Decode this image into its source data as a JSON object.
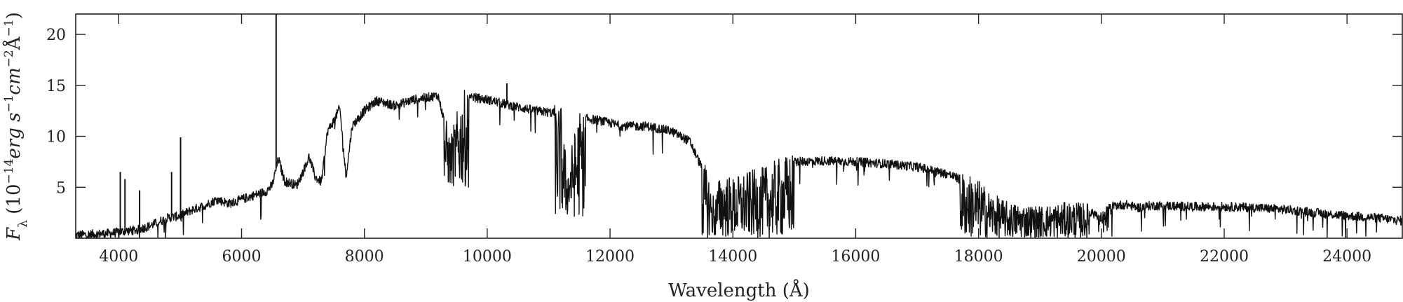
{
  "chart_data": {
    "type": "line",
    "xlabel": "Wavelength (Å)",
    "ylabel": {
      "parts": [
        {
          "t": "F",
          "style": "italic"
        },
        {
          "t": "λ",
          "style": "sub"
        },
        {
          "t": " (10",
          "style": "normal"
        },
        {
          "t": "−14",
          "style": "sup"
        },
        {
          "t": "erg s",
          "style": "italic"
        },
        {
          "t": "−1",
          "style": "sup"
        },
        {
          "t": "cm",
          "style": "italic"
        },
        {
          "t": "−2",
          "style": "sup"
        },
        {
          "t": "Å",
          "style": "normal"
        },
        {
          "t": "−1",
          "style": "sup"
        },
        {
          "t": ")",
          "style": "normal"
        }
      ]
    },
    "xlim": [
      3300,
      24900
    ],
    "ylim": [
      0,
      22
    ],
    "xticks": [
      4000,
      6000,
      8000,
      10000,
      12000,
      14000,
      16000,
      18000,
      20000,
      22000,
      24000
    ],
    "yticks": [
      5,
      10,
      15,
      20
    ],
    "grid": false,
    "series": [
      {
        "color": "#111111",
        "x": [
          3300,
          3600,
          3900,
          4000,
          4100,
          4300,
          4500,
          4800,
          5000,
          5200,
          5400,
          5600,
          5800,
          6000,
          6200,
          6400,
          6500,
          6600,
          6700,
          6900,
          7000,
          7100,
          7200,
          7300,
          7400,
          7500,
          7600,
          7700,
          7800,
          8000,
          8200,
          8500,
          8800,
          9000,
          9200,
          9400,
          9600,
          9800,
          10000,
          10400,
          10800,
          11200,
          11300,
          11500,
          11800,
          12200,
          12600,
          13000,
          13300,
          13600,
          13700,
          13800,
          14000,
          14200,
          14500,
          14800,
          15000,
          15500,
          16000,
          16500,
          17000,
          17500,
          17800,
          18000,
          18200,
          18500,
          19000,
          19500,
          19900,
          20000,
          20200,
          20400,
          20600,
          20800,
          21000,
          21500,
          22000,
          22500,
          23000,
          23500,
          24000,
          24500,
          24900
        ],
        "y": [
          0.3,
          0.4,
          0.5,
          0.6,
          0.7,
          0.8,
          1.2,
          2.0,
          2.2,
          2.8,
          3.2,
          3.8,
          3.4,
          3.8,
          4.2,
          4.6,
          5.2,
          7.8,
          5.6,
          5.2,
          6.5,
          8.0,
          6.0,
          5.5,
          10.5,
          11.5,
          12.8,
          6.0,
          11.0,
          12.5,
          13.5,
          13.0,
          13.6,
          13.8,
          14.0,
          9.0,
          13.5,
          13.8,
          13.6,
          13.0,
          12.5,
          12.2,
          6.0,
          11.8,
          11.6,
          11.0,
          11.0,
          10.5,
          9.5,
          5.5,
          3.0,
          5.5,
          5.0,
          5.5,
          6.0,
          7.0,
          7.5,
          7.6,
          7.5,
          7.3,
          7.0,
          6.3,
          5.5,
          4.8,
          3.5,
          2.5,
          2.2,
          2.6,
          2.4,
          1.5,
          3.2,
          3.3,
          3.0,
          3.2,
          3.2,
          3.1,
          3.1,
          3.0,
          2.8,
          2.5,
          2.2,
          2.0,
          1.7
        ]
      }
    ],
    "absorption_bands": [
      {
        "x0": 9300,
        "x1": 9700,
        "floor": 5.0
      },
      {
        "x0": 11100,
        "x1": 11600,
        "floor": 2.0
      },
      {
        "x0": 13500,
        "x1": 15000,
        "floor": 0.0
      },
      {
        "x0": 17700,
        "x1": 19800,
        "floor": 0.0
      },
      {
        "x0": 19950,
        "x1": 20150,
        "floor": 0.5
      }
    ],
    "emission_lines": [
      {
        "x": 4026,
        "y": 6.5
      },
      {
        "x": 4102,
        "y": 5.8
      },
      {
        "x": 4340,
        "y": 4.7
      },
      {
        "x": 4861,
        "y": 6.5
      },
      {
        "x": 5007,
        "y": 9.9
      },
      {
        "x": 6563,
        "y": 22.0
      },
      {
        "x": 10320,
        "y": 15.2
      }
    ]
  }
}
